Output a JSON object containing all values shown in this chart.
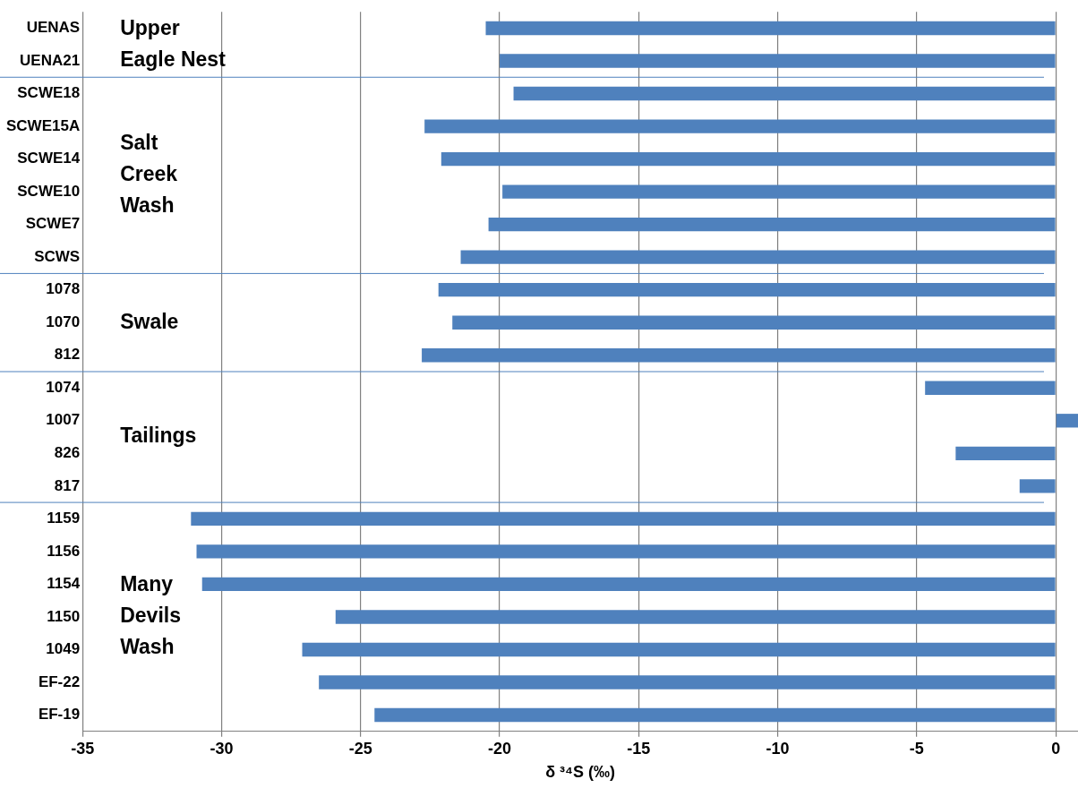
{
  "chart_data": {
    "type": "bar",
    "orientation": "horizontal",
    "xlabel": "δ ³⁴S (‰)",
    "categories": [
      "UENAS",
      "UENA21",
      "SCWE18",
      "SCWE15A",
      "SCWE14",
      "SCWE10",
      "SCWE7",
      "SCWS",
      "1078",
      "1070",
      "812",
      "1074",
      "1007",
      "826",
      "817",
      "1159",
      "1156",
      "1154",
      "1150",
      "1049",
      "EF-22",
      "EF-19"
    ],
    "values": [
      -20.5,
      -20.0,
      -19.5,
      -22.7,
      -22.1,
      -19.9,
      -20.4,
      -21.4,
      -22.2,
      -21.7,
      -22.8,
      -4.7,
      0.8,
      -3.6,
      -1.3,
      -31.1,
      -30.9,
      -30.7,
      -25.9,
      -27.1,
      -26.5,
      -24.5
    ],
    "color": "#4f81bd",
    "xlim": [
      -35,
      0.8
    ],
    "xticks": [
      -35,
      -30,
      -25,
      -20,
      -15,
      -10,
      -5,
      0
    ],
    "grid": "x",
    "legend": false,
    "annotations": [
      "Upper\nEagle Nest",
      "Salt\nCreek\nWash",
      "Swale",
      "Tailings",
      "Many\nDevils\nWash"
    ]
  }
}
